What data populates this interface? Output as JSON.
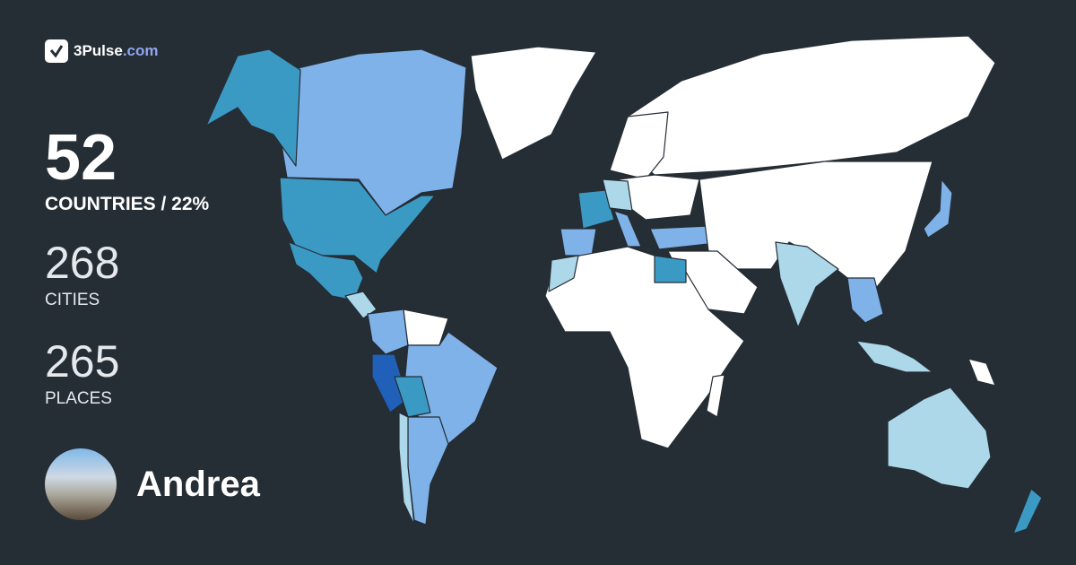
{
  "brand": {
    "name": "3Pulse",
    "domain": ".com",
    "icon": "check-pulse-icon",
    "domain_color": "#8fa5f0"
  },
  "stats": {
    "countries": {
      "value": "52",
      "label": "COUNTRIES / 22%"
    },
    "cities": {
      "value": "268",
      "label": "CITIES"
    },
    "places": {
      "value": "265",
      "label": "PLACES"
    }
  },
  "user": {
    "name": "Andrea"
  },
  "map": {
    "background": "#252d35",
    "colors": {
      "unvisited": "#ffffff",
      "level1": "#acd8ea",
      "level2": "#7fb2e8",
      "level3": "#3b9ac4",
      "level4": "#2160b8"
    }
  }
}
